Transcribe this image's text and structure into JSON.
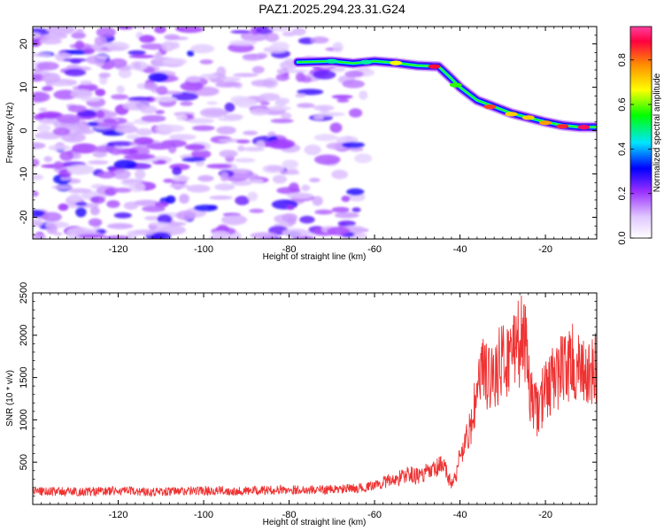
{
  "figure_title": "PAZ1.2025.294.23.31.G24",
  "chart_data": [
    {
      "type": "heatmap",
      "title": "PAZ1.2025.294.23.31.G24",
      "xlabel": "Height of straight line (km)",
      "ylabel": "Frequency (Hz)",
      "xlim": [
        -140,
        -8
      ],
      "ylim": [
        -25,
        24
      ],
      "xticks": [
        -120,
        -100,
        -80,
        -60,
        -40,
        -20
      ],
      "yticks": [
        -20,
        -10,
        0,
        10,
        20
      ],
      "colorbar": {
        "label": "Normalized spectral amplitude",
        "range": [
          0,
          0.95
        ],
        "ticks": [
          0.0,
          0.2,
          0.4,
          0.6,
          0.8
        ],
        "colormap": [
          "#ffffff",
          "#e0c8ff",
          "#9b30ff",
          "#0000ff",
          "#00e5ff",
          "#00ff00",
          "#ffff00",
          "#ff8c00",
          "#ff0040",
          "#ff40a0"
        ]
      },
      "ridge": {
        "description": "signal frequency track",
        "x": [
          -78,
          -70,
          -65,
          -60,
          -55,
          -50,
          -45,
          -42,
          -40,
          -36,
          -32,
          -28,
          -24,
          -20,
          -16,
          -12,
          -8
        ],
        "y": [
          15.8,
          16,
          15.5,
          16,
          15.6,
          15,
          14.8,
          12,
          10,
          7,
          5.5,
          4,
          3,
          2,
          1.2,
          0.8,
          0.8
        ]
      },
      "noise_region_x": [
        -140,
        -62
      ]
    },
    {
      "type": "line",
      "title": "",
      "xlabel": "Height of straight line (km)",
      "ylabel": "SNR (10 * v/v)",
      "xlim": [
        -140,
        -8
      ],
      "ylim": [
        0,
        2500
      ],
      "xticks": [
        -120,
        -100,
        -80,
        -60,
        -40,
        -20
      ],
      "yticks": [
        500,
        1000,
        1500,
        2000,
        2500
      ],
      "series": [
        {
          "name": "SNR",
          "color": "#ee3333",
          "x": [
            -140,
            -130,
            -120,
            -110,
            -100,
            -90,
            -80,
            -70,
            -62,
            -58,
            -55,
            -52,
            -50,
            -48,
            -46,
            -44,
            -42,
            -41,
            -40,
            -38,
            -36,
            -35,
            -34,
            -32,
            -30,
            -28,
            -27,
            -26,
            -25,
            -24,
            -22,
            -20,
            -18,
            -16,
            -14,
            -12,
            -10,
            -8
          ],
          "y": [
            160,
            150,
            160,
            150,
            165,
            160,
            175,
            175,
            200,
            260,
            300,
            360,
            330,
            370,
            400,
            470,
            240,
            320,
            600,
            800,
            1300,
            1600,
            1500,
            1550,
            1700,
            1750,
            2000,
            1850,
            2100,
            1400,
            1100,
            1350,
            1500,
            1600,
            1700,
            1550,
            1500,
            1600
          ]
        }
      ]
    }
  ]
}
